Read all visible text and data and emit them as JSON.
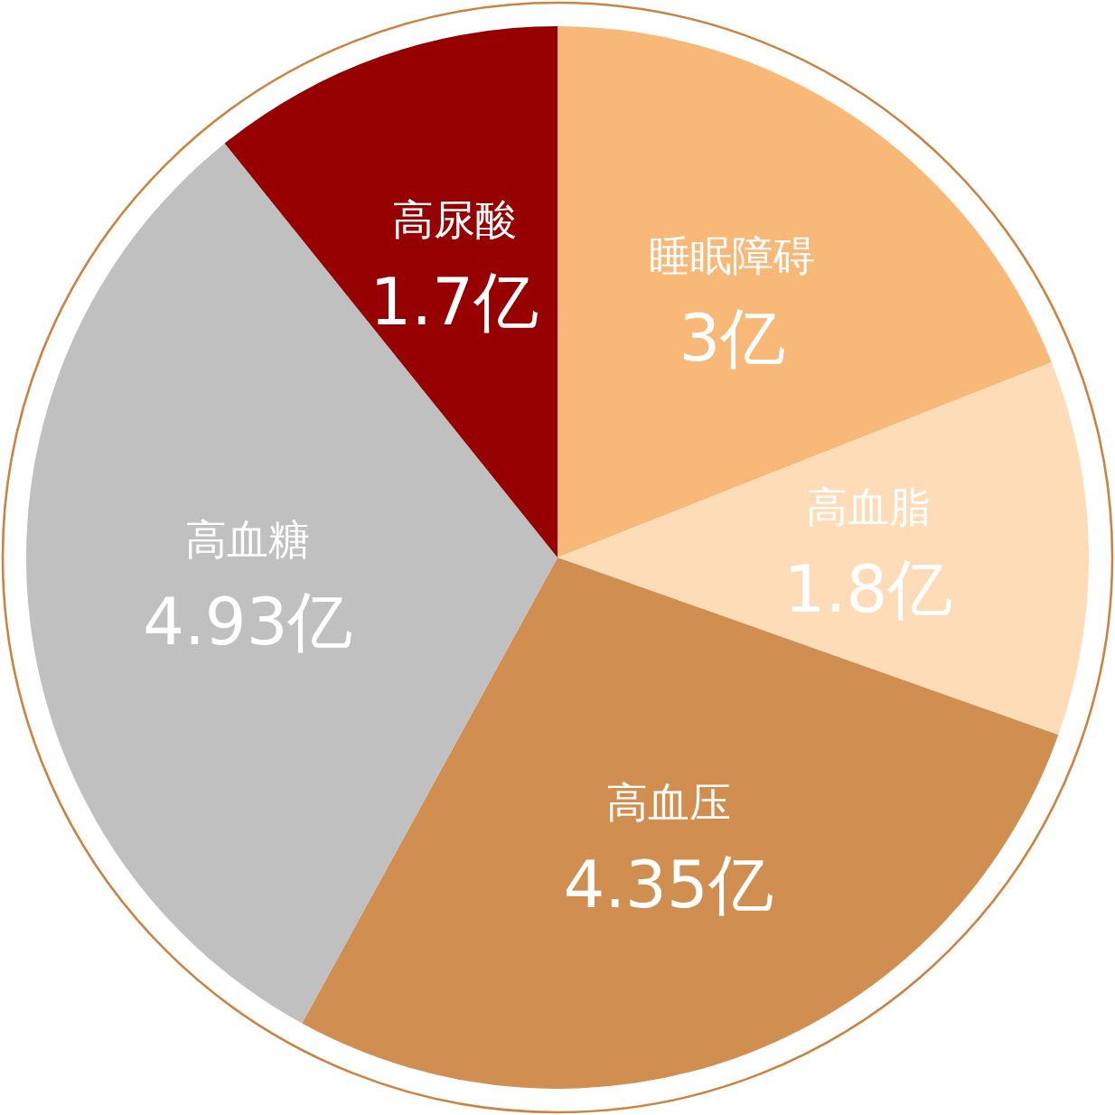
{
  "chart_data": {
    "type": "pie",
    "categories": [
      "睡眠障碍",
      "高血脂",
      "高血压",
      "高血糖",
      "高尿酸"
    ],
    "values": [
      3,
      1.8,
      4.35,
      4.93,
      1.7
    ],
    "colors": [
      "#f8b878",
      "#fedcb8",
      "#d08f50",
      "#c0c0c0",
      "#960000"
    ],
    "value_labels": [
      "3亿",
      "1.8亿",
      "4.35亿",
      "4.93亿",
      "1.7亿"
    ]
  }
}
